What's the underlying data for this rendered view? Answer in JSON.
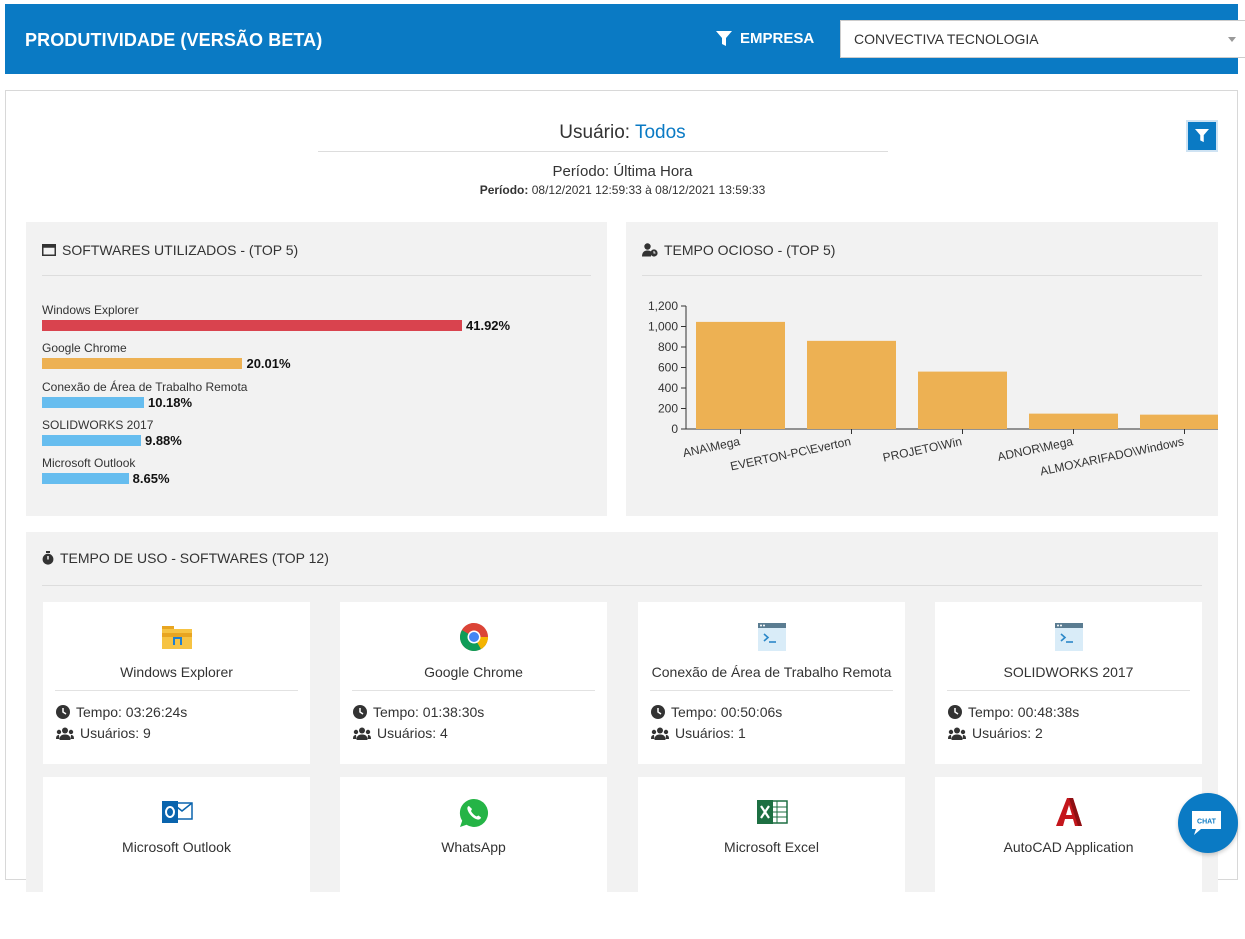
{
  "header": {
    "title": "PRODUTIVIDADE (VERSÃO BETA)",
    "filter_label": "EMPRESA",
    "company_selected": "CONVECTIVA TECNOLOGIA"
  },
  "summary": {
    "user_label": "Usuário:",
    "user_value": "Todos",
    "period_title": "Período: Última Hora",
    "period_detail_label": "Período:",
    "period_detail_value": "08/12/2021 12:59:33 à 08/12/2021 13:59:33"
  },
  "software_card": {
    "title": "SOFTWARES UTILIZADOS - (TOP 5)",
    "items": [
      {
        "label": "Windows Explorer",
        "pct_text": "41.92%",
        "pct": 41.92,
        "color": "#d9434e"
      },
      {
        "label": "Google Chrome",
        "pct_text": "20.01%",
        "pct": 20.01,
        "color": "#edb153"
      },
      {
        "label": "Conexão de Área de Trabalho Remota",
        "pct_text": "10.18%",
        "pct": 10.18,
        "color": "#66bdef"
      },
      {
        "label": "SOLIDWORKS 2017",
        "pct_text": "9.88%",
        "pct": 9.88,
        "color": "#66bdef"
      },
      {
        "label": "Microsoft Outlook",
        "pct_text": "8.65%",
        "pct": 8.65,
        "color": "#66bdef"
      }
    ]
  },
  "idle_card": {
    "title": "TEMPO OCIOSO - (TOP 5)"
  },
  "chart_data": {
    "type": "bar",
    "categories": [
      "ANA\\Mega",
      "EVERTON-PC\\Everton",
      "PROJETO\\Win",
      "ADNOR\\Mega",
      "ALMOXARIFADO\\Windows"
    ],
    "values": [
      1045,
      860,
      560,
      150,
      140
    ],
    "ylim": [
      0,
      1200
    ],
    "yticks": [
      "0",
      "200",
      "400",
      "600",
      "800",
      "1,000",
      "1,200"
    ],
    "color": "#edb153",
    "grid": false
  },
  "usage_card": {
    "title": "TEMPO DE USO - SOFTWARES (TOP 12)",
    "tiles": [
      {
        "name": "Windows Explorer",
        "icon": "folder-icon",
        "time": "Tempo: 03:26:24s",
        "users": "Usuários: 9"
      },
      {
        "name": "Google Chrome",
        "icon": "chrome-icon",
        "time": "Tempo: 01:38:30s",
        "users": "Usuários: 4"
      },
      {
        "name": "Conexão de Área de Trabalho Remota",
        "icon": "terminal-window-icon",
        "time": "Tempo: 00:50:06s",
        "users": "Usuários: 1"
      },
      {
        "name": "SOLIDWORKS 2017",
        "icon": "terminal-window-icon",
        "time": "Tempo: 00:48:38s",
        "users": "Usuários: 2"
      },
      {
        "name": "Microsoft Outlook",
        "icon": "outlook-icon"
      },
      {
        "name": "WhatsApp",
        "icon": "whatsapp-icon"
      },
      {
        "name": "Microsoft Excel",
        "icon": "excel-icon"
      },
      {
        "name": "AutoCAD Application",
        "icon": "autocad-icon"
      }
    ]
  },
  "chat": {
    "label": "CHAT"
  }
}
